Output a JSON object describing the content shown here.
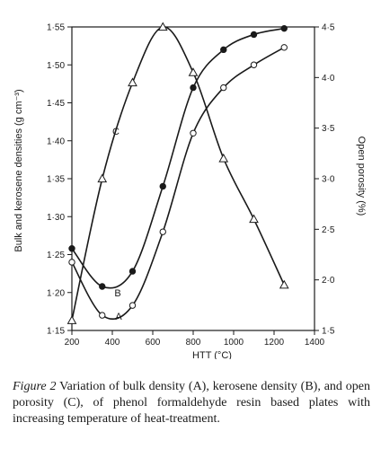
{
  "chart_data": {
    "type": "line",
    "xlabel": "HTT (°C)",
    "ylabel_left": "Bulk and kerosene densities (g cm⁻³)",
    "ylabel_right": "Open porosity (%)",
    "xlim": [
      200,
      1400
    ],
    "ylim_left": [
      1.15,
      1.55
    ],
    "ylim_right": [
      1.5,
      4.5
    ],
    "x_ticks": [
      "200",
      "400",
      "600",
      "800",
      "1000",
      "1200",
      "1400"
    ],
    "y_left_ticks": [
      "1·15",
      "1·20",
      "1·25",
      "1·30",
      "1·35",
      "1·40",
      "1·45",
      "1·50",
      "1·55"
    ],
    "y_right_ticks": [
      "1·5",
      "2·0",
      "2·5",
      "3·0",
      "3·5",
      "4·0",
      "4·5"
    ],
    "series": [
      {
        "name": "A",
        "marker": "open-circle",
        "axis": "left",
        "x": [
          200,
          350,
          500,
          650,
          800,
          950,
          1100,
          1250
        ],
        "y": [
          1.24,
          1.17,
          1.183,
          1.28,
          1.41,
          1.47,
          1.5,
          1.523
        ]
      },
      {
        "name": "B",
        "marker": "filled-circle",
        "axis": "left",
        "x": [
          200,
          350,
          500,
          650,
          800,
          950,
          1100,
          1250
        ],
        "y": [
          1.258,
          1.208,
          1.228,
          1.34,
          1.47,
          1.52,
          1.54,
          1.548
        ]
      },
      {
        "name": "C",
        "marker": "open-triangle",
        "axis": "right",
        "x": [
          200,
          350,
          500,
          650,
          800,
          950,
          1100,
          1250
        ],
        "y": [
          1.6,
          3.0,
          3.95,
          4.5,
          4.05,
          3.2,
          2.6,
          1.95
        ]
      }
    ]
  },
  "caption": {
    "lead": "Figure 2",
    "text": " Variation of bulk density (A), kerosene density (B), and open porosity (C), of phenol formaldehyde resin based plates with increasing temperature of heat-treatment."
  }
}
